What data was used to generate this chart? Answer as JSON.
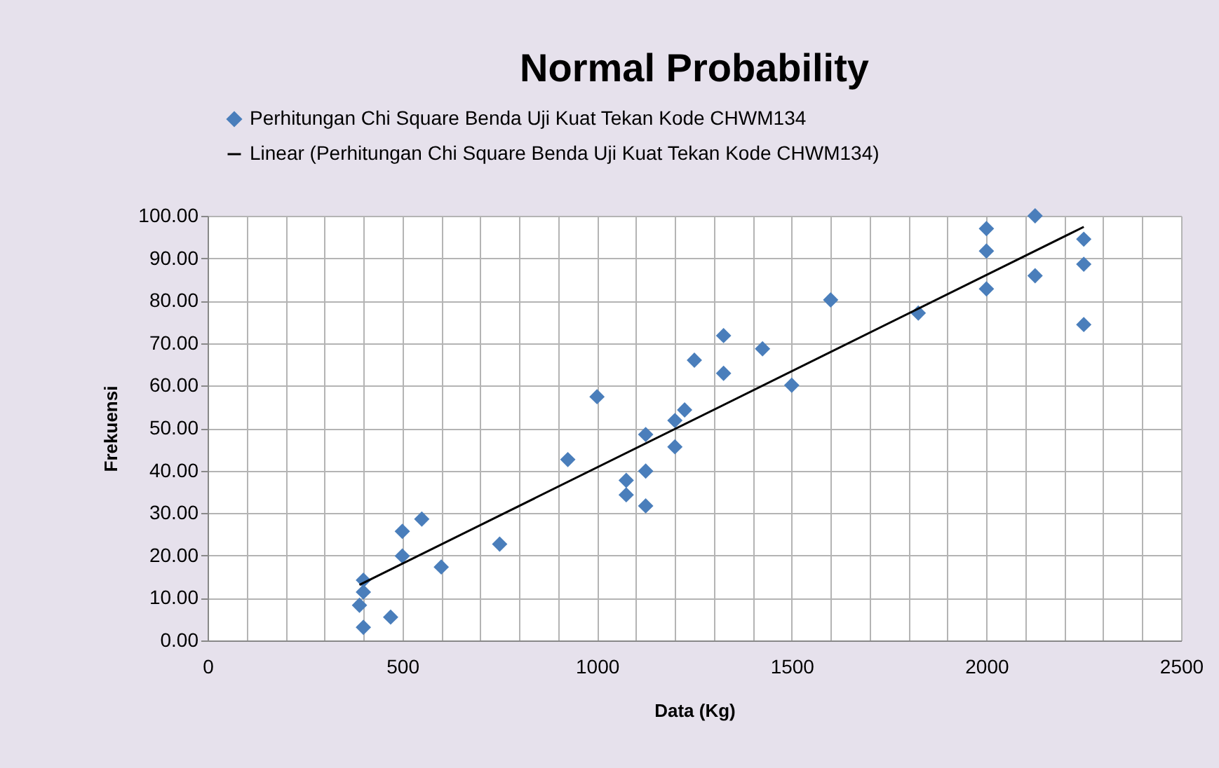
{
  "chart_data": {
    "type": "scatter",
    "title": "Normal Probability",
    "xlabel": "Data (Kg)",
    "ylabel": "Frekuensi",
    "xlim": [
      0,
      2500
    ],
    "xticks": [
      0,
      {
        "value": 100,
        "label": null
      },
      {
        "value": 200,
        "label": null
      },
      {
        "value": 300,
        "label": null
      },
      {
        "value": 400,
        "label": null
      },
      500,
      {
        "value": 600,
        "label": null
      },
      {
        "value": 700,
        "label": null
      },
      {
        "value": 800,
        "label": null
      },
      {
        "value": 900,
        "label": null
      },
      1000,
      {
        "value": 1100,
        "label": null
      },
      {
        "value": 1200,
        "label": null
      },
      {
        "value": 1300,
        "label": null
      },
      {
        "value": 1400,
        "label": null
      },
      1500,
      {
        "value": 1600,
        "label": null
      },
      {
        "value": 1700,
        "label": null
      },
      {
        "value": 1800,
        "label": null
      },
      {
        "value": 1900,
        "label": null
      },
      2000,
      {
        "value": 2100,
        "label": null
      },
      {
        "value": 2200,
        "label": null
      },
      {
        "value": 2300,
        "label": null
      },
      {
        "value": 2400,
        "label": null
      },
      2500
    ],
    "ylim": [
      0,
      100
    ],
    "yticks": [
      {
        "value": 0,
        "label": "0.00"
      },
      {
        "value": 10,
        "label": "10.00"
      },
      {
        "value": 20,
        "label": "20.00"
      },
      {
        "value": 30,
        "label": "30.00"
      },
      {
        "value": 40,
        "label": "40.00"
      },
      {
        "value": 50,
        "label": "50.00"
      },
      {
        "value": 60,
        "label": "60.00"
      },
      {
        "value": 70,
        "label": "70.00"
      },
      {
        "value": 80,
        "label": "80.00"
      },
      {
        "value": 90,
        "label": "90.00"
      },
      {
        "value": 100,
        "label": "100.00"
      }
    ],
    "grid": true,
    "legend": "top",
    "series": [
      {
        "name": "Perhitungan Chi Square Benda Uji Kuat Tekan Kode CHWM134",
        "marker": "diamond",
        "color": "#4a7ebb",
        "x": [
          400,
          400,
          390,
          400,
          470,
          500,
          500,
          550,
          600,
          750,
          925,
          1000,
          1075,
          1075,
          1125,
          1125,
          1125,
          1200,
          1200,
          1225,
          1250,
          1325,
          1325,
          1425,
          1500,
          1600,
          1825,
          2000,
          2000,
          2000,
          2125,
          2125,
          2250,
          2250,
          2250
        ],
        "values": [
          14.2,
          11.4,
          8.3,
          3.1,
          5.5,
          25.7,
          19.9,
          28.6,
          17.3,
          22.7,
          42.6,
          57.4,
          37.7,
          34.3,
          39.9,
          31.7,
          48.5,
          45.6,
          51.8,
          54.3,
          66.0,
          71.8,
          62.9,
          68.7,
          60.1,
          80.2,
          77.1,
          97.0,
          91.7,
          82.8,
          100.0,
          85.9,
          94.5,
          88.6,
          74.4
        ]
      },
      {
        "name": "Linear (Perhitungan Chi Square Benda Uji Kuat Tekan Kode CHWM134)",
        "type": "line",
        "color": "#000000",
        "x": [
          390,
          2250
        ],
        "values": [
          13.1,
          97.4
        ]
      }
    ]
  }
}
